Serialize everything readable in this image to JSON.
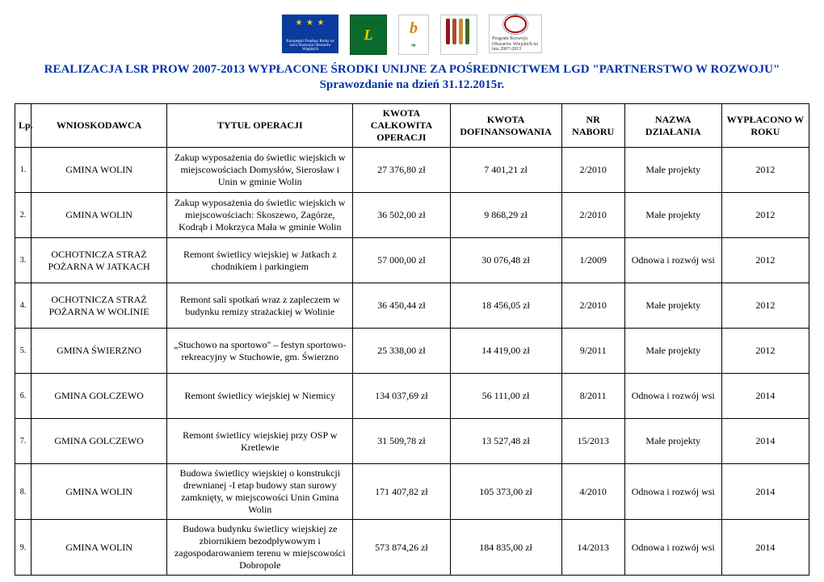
{
  "header": {
    "title": "REALIZACJA  LSR  PROW  2007-2013  WYPŁACONE ŚRODKI UNIJNE ZA POŚREDNICTWEM  LGD \"PARTNERSTWO W  ROZWOJU\"",
    "subtitle": "Sprawozdanie na dzień 31.12.2015r."
  },
  "logos": {
    "eu_caption": "Europejski Fundusz Rolny na rzecz Rozwoju Obszarów Wiejskich",
    "prow_text": "Program Rozwoju Obszarów Wiejskich na lata 2007-2013"
  },
  "table": {
    "columns": [
      "Lp.",
      "WNIOSKODAWCA",
      "TYTUŁ OPERACJI",
      "KWOTA CAŁKOWITA OPERACJI",
      "KWOTA DOFINANSOWANIA",
      "NR NABORU",
      "NAZWA DZIAŁANIA",
      "WYPŁACONO W ROKU"
    ],
    "rows": [
      {
        "lp": "1.",
        "app": "GMINA WOLIN",
        "title": "Zakup wyposażenia do świetlic wiejskich w miejscowościach Domysłów, Sierosław i Unin w gminie Wolin",
        "total": "27 376,80 zł",
        "fund": "7 401,21 zł",
        "nr": "2/2010",
        "act": "Małe projekty",
        "year": "2012"
      },
      {
        "lp": "2.",
        "app": "GMINA WOLIN",
        "title": "Zakup wyposażenia do świetlic wiejskich w miejscowościach: Skoszewo, Zagórze, Kodrąb i Mokrzyca Mała w gminie Wolin",
        "total": "36 502,00 zł",
        "fund": "9 868,29 zł",
        "nr": "2/2010",
        "act": "Małe projekty",
        "year": "2012"
      },
      {
        "lp": "3.",
        "app": "OCHOTNICZA STRAŻ POŻARNA  W JATKACH",
        "title": "Remont świetlicy wiejskiej w Jatkach z chodnikiem i parkingiem",
        "total": "57 000,00 zł",
        "fund": "30 076,48 zł",
        "nr": "1/2009",
        "act": "Odnowa i rozwój wsi",
        "year": "2012"
      },
      {
        "lp": "4.",
        "app": "OCHOTNICZA STRAŻ POŻARNA W WOLINIE",
        "title": "Remont sali spotkań wraz z zapleczem w budynku remizy strażackiej w Wolinie",
        "total": "36 450,44 zł",
        "fund": "18 456,05 zł",
        "nr": "2/2010",
        "act": "Małe projekty",
        "year": "2012"
      },
      {
        "lp": "5.",
        "app": "GMINA ŚWIERZNO",
        "title": "„Stuchowo na sportowo\" – festyn sportowo-rekreacyjny w Stuchowie, gm. Świerzno",
        "total": "25 338,00 zł",
        "fund": "14 419,00 zł",
        "nr": "9/2011",
        "act": "Małe projekty",
        "year": "2012"
      },
      {
        "lp": "6.",
        "app": "GMINA GOLCZEWO",
        "title": "Remont świetlicy wiejskiej w Niemicy",
        "total": "134 037,69 zł",
        "fund": "56 111,00 zł",
        "nr": "8/2011",
        "act": "Odnowa i rozwój wsi",
        "year": "2014"
      },
      {
        "lp": "7.",
        "app": "GMINA GOLCZEWO",
        "title": "Remont  świetlicy wiejskiej przy OSP w Kretlewie",
        "total": "31 509,78 zł",
        "fund": "13 527,48 zł",
        "nr": "15/2013",
        "act": "Małe projekty",
        "year": "2014"
      },
      {
        "lp": "8.",
        "app": "GMINA WOLIN",
        "title": "Budowa świetlicy wiejskiej o konstrukcji drewnianej -I etap budowy stan surowy zamknięty, w miejscowości Unin Gmina Wolin",
        "total": "171 407,82 zł",
        "fund": "105 373,00 zł",
        "nr": "4/2010",
        "act": "Odnowa i rozwój wsi",
        "year": "2014"
      },
      {
        "lp": "9.",
        "app": "GMINA WOLIN",
        "title": "Budowa budynku świetlicy wiejskiej ze zbiornikiem bezodpływowym i zagospodarowaniem terenu w miejscowości Dobropole",
        "total": "573 874,26 zł",
        "fund": "184 835,00 zł",
        "nr": "14/2013",
        "act": "Odnowa i rozwój wsi",
        "year": "2014"
      }
    ]
  },
  "style": {
    "title_color": "#0033aa",
    "border_color": "#000000",
    "font_family": "Times New Roman"
  }
}
